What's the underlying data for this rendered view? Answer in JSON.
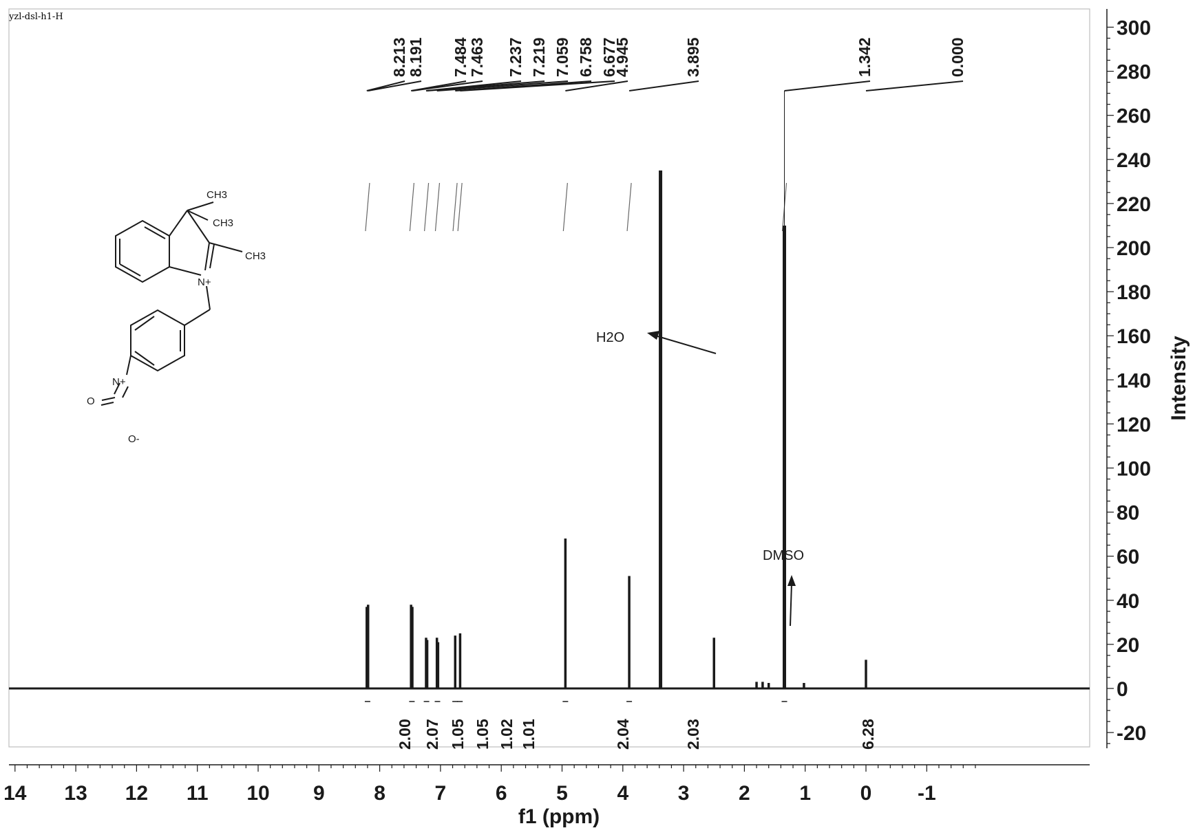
{
  "sample_id": "yzl-dsl-h1-H",
  "chart_data": {
    "type": "line",
    "title": "",
    "xlabel": "f1 (ppm)",
    "ylabel": "Intensity",
    "x_reversed": true,
    "xlim": [
      14.2,
      -1.9
    ],
    "ylim": [
      -27,
      305
    ],
    "x_ticks": [
      14,
      13,
      12,
      11,
      10,
      9,
      8,
      7,
      6,
      5,
      4,
      3,
      2,
      1,
      0,
      -1
    ],
    "x_tick_labels": [
      "14",
      "13",
      "12",
      "11",
      "10",
      "9",
      "8",
      "7",
      "6",
      "5",
      "4",
      "3",
      "2",
      "1",
      "0",
      "-1"
    ],
    "y_ticks": [
      300,
      280,
      260,
      240,
      220,
      200,
      180,
      160,
      140,
      120,
      100,
      80,
      60,
      40,
      20,
      0,
      -20
    ],
    "y_tick_labels": [
      "300",
      "280",
      "260",
      "240",
      "220",
      "200",
      "180",
      "160",
      "140",
      "120",
      "100",
      "80",
      "60",
      "40",
      "20",
      "0",
      "-20"
    ],
    "peaks": [
      {
        "ppm": 8.213,
        "height": 37
      },
      {
        "ppm": 8.191,
        "height": 38
      },
      {
        "ppm": 7.484,
        "height": 38
      },
      {
        "ppm": 7.463,
        "height": 37
      },
      {
        "ppm": 7.237,
        "height": 23
      },
      {
        "ppm": 7.219,
        "height": 22
      },
      {
        "ppm": 7.059,
        "height": 23
      },
      {
        "ppm": 7.04,
        "height": 21
      },
      {
        "ppm": 6.758,
        "height": 24
      },
      {
        "ppm": 6.677,
        "height": 25
      },
      {
        "ppm": 4.945,
        "height": 68
      },
      {
        "ppm": 3.895,
        "height": 51
      },
      {
        "ppm": 3.38,
        "height": 235
      },
      {
        "ppm": 2.5,
        "height": 23
      },
      {
        "ppm": 1.342,
        "height": 210
      },
      {
        "ppm": 1.8,
        "height": 3
      },
      {
        "ppm": 1.7,
        "height": 3
      },
      {
        "ppm": 1.6,
        "height": 2.5
      },
      {
        "ppm": 1.02,
        "height": 2.5
      },
      {
        "ppm": 0.0,
        "height": 13
      }
    ],
    "peak_labels": [
      "8.213",
      "8.191",
      "7.484",
      "7.463",
      "7.237",
      "7.219",
      "7.059",
      "6.758",
      "6.677",
      "4.945",
      "3.895",
      "1.342",
      "0.000"
    ],
    "integrals": [
      {
        "ppm": 8.2,
        "value": "2.00"
      },
      {
        "ppm": 7.47,
        "value": "2.07"
      },
      {
        "ppm": 7.23,
        "value": "1.05"
      },
      {
        "ppm": 7.05,
        "value": "1.05"
      },
      {
        "ppm": 6.76,
        "value": "1.02"
      },
      {
        "ppm": 6.68,
        "value": "1.01"
      },
      {
        "ppm": 4.945,
        "value": "2.04"
      },
      {
        "ppm": 3.895,
        "value": "2.03"
      },
      {
        "ppm": 1.342,
        "value": "6.28"
      }
    ],
    "annotations": [
      "H2O",
      "DMSO"
    ]
  },
  "molecule": {
    "labels": [
      "CH3",
      "CH3",
      "CH3",
      "N+",
      "O",
      "N+",
      "O-"
    ]
  }
}
